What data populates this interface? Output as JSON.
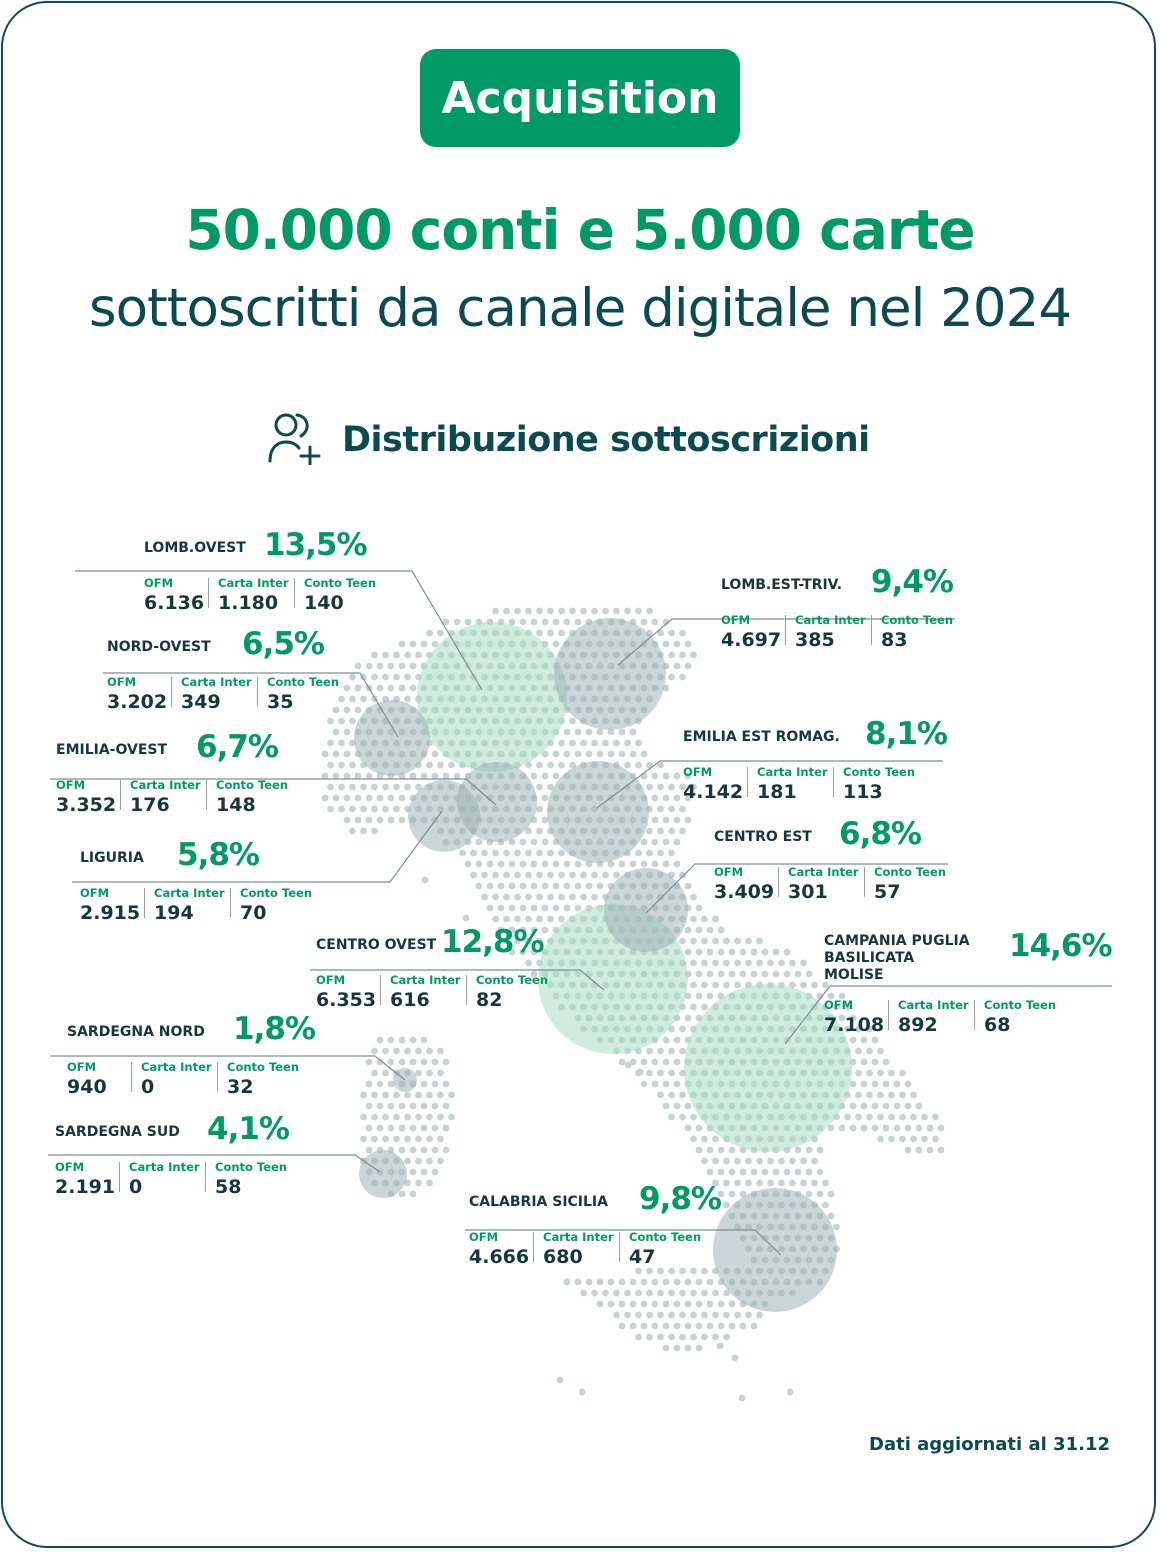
{
  "badge": "Acquisition",
  "headline": "50.000 conti e 5.000 carte",
  "subheadline": "sottoscritti da canale digitale nel 2024",
  "section": {
    "title": "Distribuzione sottoscrizioni",
    "icon": "user-add-icon"
  },
  "stat_labels": {
    "ofm": "OFM",
    "carta": "Carta Inter",
    "teen": "Conto Teen"
  },
  "colors": {
    "green": "#009a66",
    "dark": "#0c4a51",
    "bubble_green": "#a8dcc4",
    "bubble_gray": "#9fb4b6",
    "dots": "#c6d2d4"
  },
  "regions": [
    {
      "name": "LOMB.OVEST",
      "share": "13,5%",
      "ofm": "6.136",
      "carta": "1.180",
      "teen": "140"
    },
    {
      "name": "NORD-OVEST",
      "share": "6,5%",
      "ofm": "3.202",
      "carta": "349",
      "teen": "35"
    },
    {
      "name": "EMILIA-OVEST",
      "share": "6,7%",
      "ofm": "3.352",
      "carta": "176",
      "teen": "148"
    },
    {
      "name": "LIGURIA",
      "share": "5,8%",
      "ofm": "2.915",
      "carta": "194",
      "teen": "70"
    },
    {
      "name": "CENTRO OVEST",
      "share": "12,8%",
      "ofm": "6.353",
      "carta": "616",
      "teen": "82"
    },
    {
      "name": "SARDEGNA NORD",
      "share": "1,8%",
      "ofm": "940",
      "carta": "0",
      "teen": "32"
    },
    {
      "name": "SARDEGNA SUD",
      "share": "4,1%",
      "ofm": "2.191",
      "carta": "0",
      "teen": "58"
    },
    {
      "name": "LOMB.EST-TRIV.",
      "share": "9,4%",
      "ofm": "4.697",
      "carta": "385",
      "teen": "83"
    },
    {
      "name": "EMILIA EST ROMAG.",
      "share": "8,1%",
      "ofm": "4.142",
      "carta": "181",
      "teen": "113"
    },
    {
      "name": "CENTRO EST",
      "share": "6,8%",
      "ofm": "3.409",
      "carta": "301",
      "teen": "57"
    },
    {
      "name": "CAMPANIA PUGLIA BASILICATA MOLISE",
      "share": "14,6%",
      "ofm": "7.108",
      "carta": "892",
      "teen": "68"
    },
    {
      "name": "CALABRIA SICILIA",
      "share": "9,8%",
      "ofm": "4.666",
      "carta": "680",
      "teen": "47"
    }
  ],
  "footer": "Dati aggiornati al 31.12"
}
